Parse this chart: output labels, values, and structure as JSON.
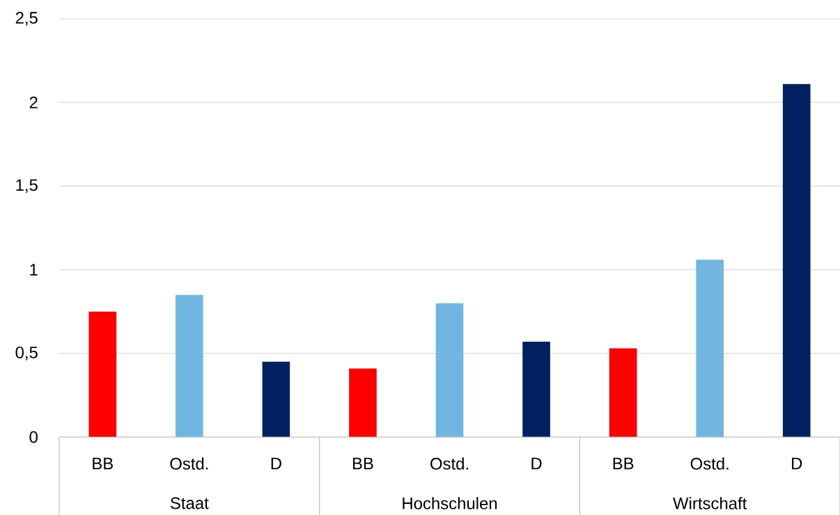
{
  "chart_data": {
    "type": "bar",
    "categories": [
      "Staat",
      "Hochschulen",
      "Wirtschaft"
    ],
    "series": [
      {
        "name": "BB",
        "color": "#ff0000",
        "values": [
          0.75,
          0.41,
          0.53
        ]
      },
      {
        "name": "Ostd.",
        "color": "#71b6e1",
        "values": [
          0.85,
          0.8,
          1.06
        ]
      },
      {
        "name": "D",
        "color": "#002060",
        "values": [
          0.45,
          0.57,
          2.11
        ]
      }
    ],
    "ylim": [
      0,
      2.5
    ],
    "yticks": [
      0,
      {
        "value": 0.5,
        "label": "0,5"
      },
      1,
      {
        "value": 1.5,
        "label": "1,5"
      },
      2,
      {
        "value": 2.5,
        "label": "2,5"
      }
    ],
    "grid": "y"
  }
}
